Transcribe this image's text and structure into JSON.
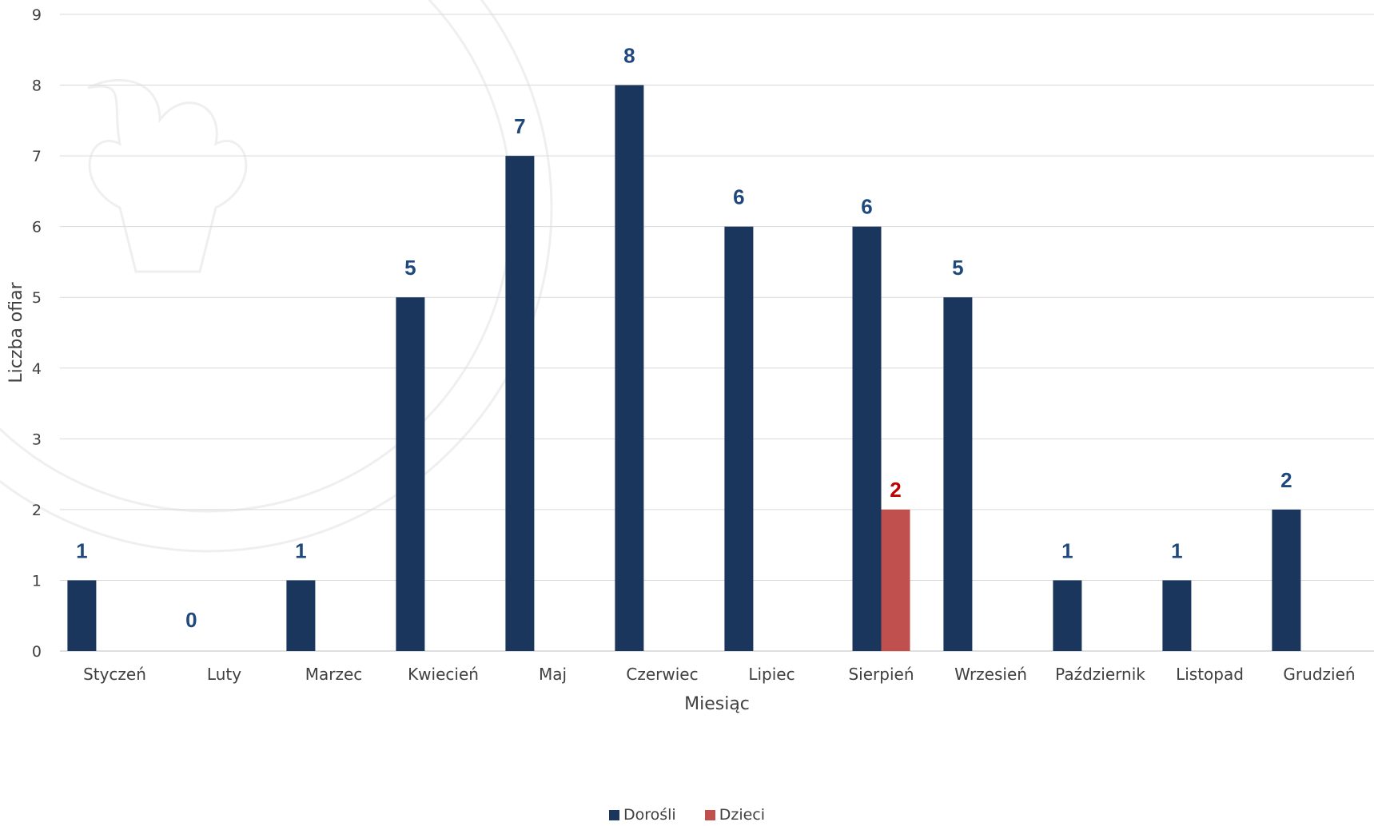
{
  "chart_data": {
    "type": "bar",
    "categories": [
      "Styczeń",
      "Luty",
      "Marzec",
      "Kwiecień",
      "Maj",
      "Czerwiec",
      "Lipiec",
      "Sierpień",
      "Wrzesień",
      "Październik",
      "Listopad",
      "Grudzień"
    ],
    "series": [
      {
        "name": "Dorośli",
        "values": [
          1,
          0,
          1,
          5,
          7,
          8,
          6,
          6,
          5,
          1,
          1,
          2
        ],
        "color": "#1b365d"
      },
      {
        "name": "Dzieci",
        "values": [
          null,
          null,
          null,
          null,
          null,
          null,
          null,
          2,
          null,
          null,
          null,
          null
        ],
        "color": "#c0504d"
      }
    ],
    "xlabel": "Miesiąc",
    "ylabel": "Liczba ofiar",
    "ylim": [
      0,
      9
    ],
    "yticks": [
      0,
      1,
      2,
      3,
      4,
      5,
      6,
      7,
      8,
      9
    ],
    "grid": true,
    "legend": "bottom",
    "label_colors": {
      "Dorośli": "#1f497d",
      "Dzieci": "#c00000"
    }
  }
}
